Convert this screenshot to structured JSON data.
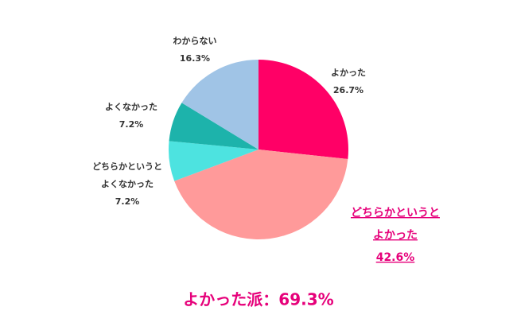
{
  "chart_data": {
    "type": "pie",
    "categories": [
      [
        "よかった"
      ],
      [
        "どちらかというと",
        "よかった"
      ],
      [
        "どちらかというと",
        "よくなかった"
      ],
      [
        "よくなかった"
      ],
      [
        "わからない"
      ]
    ],
    "values": [
      26.7,
      42.6,
      7.2,
      7.2,
      16.3
    ],
    "value_labels": [
      "26.7%",
      "42.6%",
      "7.2%",
      "7.2%",
      "16.3%"
    ],
    "colors": [
      "#ff0066",
      "#ff9a9a",
      "#4de3e0",
      "#1db3ab",
      "#a0c4e6"
    ],
    "highlight": 1,
    "annotation": "よかった派：69.3%"
  }
}
